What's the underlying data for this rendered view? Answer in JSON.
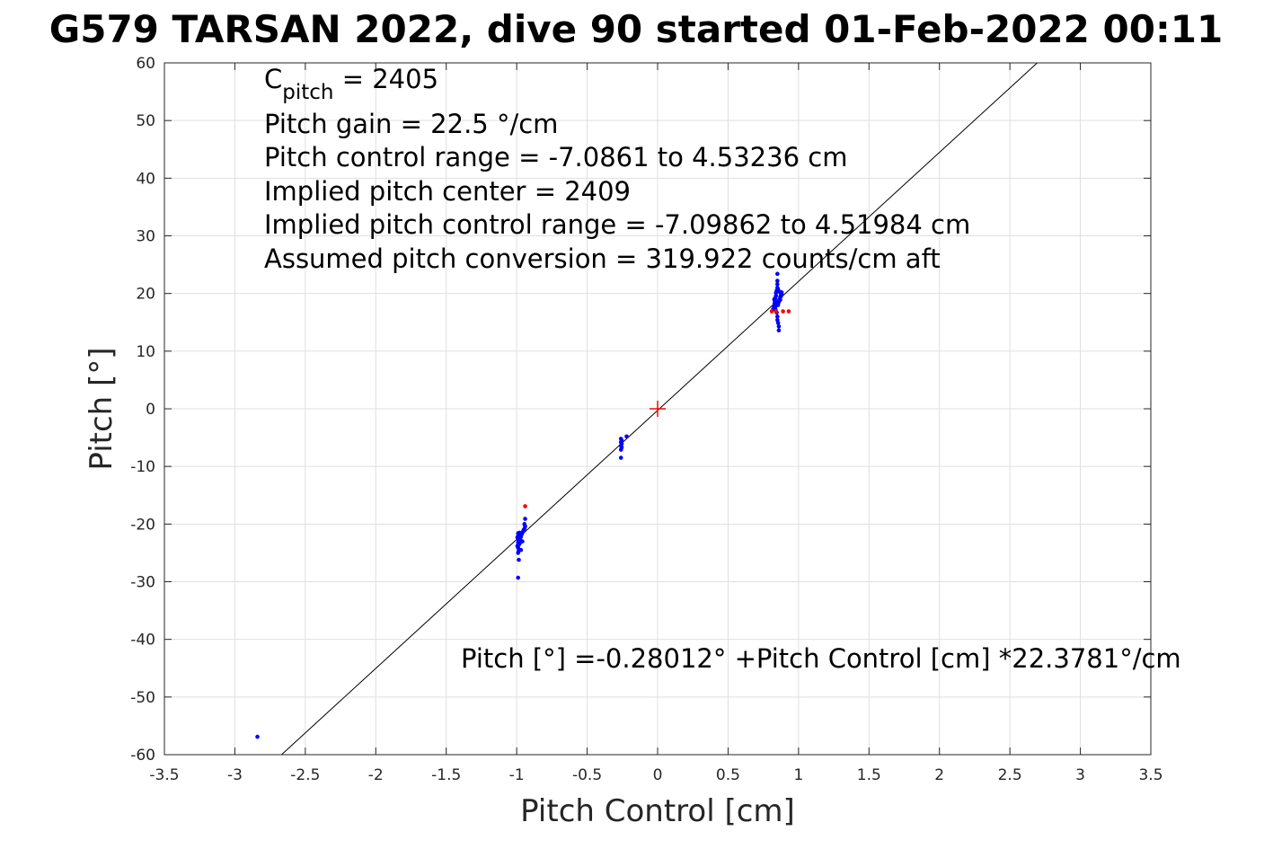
{
  "chart_data": {
    "type": "scatter",
    "title": "G579 TARSAN 2022, dive 90 started 01-Feb-2022 00:11",
    "xlabel": "Pitch Control [cm]",
    "ylabel": "Pitch [°]",
    "xlim": [
      -3.5,
      3.5
    ],
    "ylim": [
      -60,
      60
    ],
    "xticks": [
      -3.5,
      -3,
      -2.5,
      -2,
      -1.5,
      -1,
      -0.5,
      0,
      0.5,
      1,
      1.5,
      2,
      2.5,
      3,
      3.5
    ],
    "xtick_labels": [
      "-3.5",
      "-3",
      "-2.5",
      "-2",
      "-1.5",
      "-1",
      "-0.5",
      "0",
      "0.5",
      "1",
      "1.5",
      "2",
      "2.5",
      "3",
      "3.5"
    ],
    "yticks": [
      -60,
      -50,
      -40,
      -30,
      -20,
      -10,
      0,
      10,
      20,
      30,
      40,
      50,
      60
    ],
    "ytick_labels": [
      "-60",
      "-50",
      "-40",
      "-30",
      "-20",
      "-10",
      "0",
      "10",
      "20",
      "30",
      "40",
      "50",
      "60"
    ],
    "grid": true,
    "colors": {
      "blue": "#0000ff",
      "red": "#ff0000",
      "fit_line": "#000000",
      "grid": "#dfdfdf"
    },
    "annotations": {
      "cpitch_base": "C",
      "cpitch_sub": "pitch",
      "cpitch_value": " = 2405",
      "line2": "Pitch gain = 22.5 °/cm",
      "line3": "Pitch control range = -7.0861 to 4.53236 cm",
      "line4": "Implied pitch center = 2409",
      "line5": "Implied pitch control range = -7.09862 to 4.51984 cm",
      "line6": "Assumed pitch conversion = 319.922 counts/cm aft",
      "fit_equation": "Pitch [°] =-0.28012° +Pitch Control [cm] *22.3781°/cm"
    },
    "fit_line": {
      "intercept": -0.28012,
      "slope": 22.3781
    },
    "center_marker": {
      "x": 0,
      "y": 0,
      "color": "#ff0000"
    },
    "series": [
      {
        "color": "#0000ff",
        "points": [
          [
            -2.84,
            -56.9
          ],
          [
            -0.99,
            -29.3
          ],
          [
            -0.985,
            -26.2
          ],
          [
            -0.99,
            -25.0
          ],
          [
            -0.985,
            -24.6
          ],
          [
            -0.99,
            -24.1
          ],
          [
            -0.985,
            -23.6
          ],
          [
            -0.99,
            -23.2
          ],
          [
            -0.985,
            -22.9
          ],
          [
            -0.99,
            -22.6
          ],
          [
            -0.985,
            -22.4
          ],
          [
            -0.99,
            -22.1
          ],
          [
            -0.985,
            -21.9
          ],
          [
            -0.99,
            -21.6
          ],
          [
            -0.98,
            -21.5
          ],
          [
            -0.98,
            -23.4
          ],
          [
            -0.975,
            -22.8
          ],
          [
            -0.97,
            -22.2
          ],
          [
            -0.965,
            -21.8
          ],
          [
            -0.96,
            -21.5
          ],
          [
            -0.955,
            -21.3
          ],
          [
            -0.95,
            -21.0
          ],
          [
            -0.945,
            -20.8
          ],
          [
            -0.94,
            -20.4
          ],
          [
            -0.945,
            -20.0
          ],
          [
            -0.94,
            -19.1
          ],
          [
            -0.995,
            -22.3
          ],
          [
            -0.995,
            -23.8
          ],
          [
            -0.97,
            -24.5
          ],
          [
            -0.96,
            -23.0
          ],
          [
            -0.26,
            -8.5
          ],
          [
            -0.26,
            -7.1
          ],
          [
            -0.255,
            -6.7
          ],
          [
            -0.26,
            -6.4
          ],
          [
            -0.255,
            -6.1
          ],
          [
            -0.26,
            -5.8
          ],
          [
            -0.255,
            -5.5
          ],
          [
            -0.26,
            -5.2
          ],
          [
            -0.22,
            -4.8
          ],
          [
            0.82,
            17.3
          ],
          [
            0.825,
            17.8
          ],
          [
            0.83,
            18.3
          ],
          [
            0.83,
            18.8
          ],
          [
            0.835,
            19.2
          ],
          [
            0.84,
            19.6
          ],
          [
            0.84,
            20.1
          ],
          [
            0.845,
            20.5
          ],
          [
            0.85,
            21.0
          ],
          [
            0.85,
            21.6
          ],
          [
            0.85,
            22.2
          ],
          [
            0.85,
            23.4
          ],
          [
            0.855,
            18.0
          ],
          [
            0.86,
            18.5
          ],
          [
            0.865,
            19.0
          ],
          [
            0.87,
            19.4
          ],
          [
            0.875,
            19.8
          ],
          [
            0.88,
            20.2
          ],
          [
            0.845,
            16.7
          ],
          [
            0.85,
            16.0
          ],
          [
            0.85,
            15.4
          ],
          [
            0.855,
            14.9
          ],
          [
            0.86,
            14.3
          ],
          [
            0.86,
            13.6
          ],
          [
            0.835,
            17.6
          ],
          [
            0.84,
            18.1
          ],
          [
            0.87,
            18.9
          ],
          [
            0.875,
            19.5
          ],
          [
            0.88,
            19.9
          ],
          [
            0.865,
            20.3
          ],
          [
            0.855,
            20.7
          ],
          [
            0.845,
            18.6
          ],
          [
            0.828,
            19.0
          ],
          [
            0.838,
            17.1
          ]
        ]
      },
      {
        "color": "#ff0000",
        "points": [
          [
            -0.94,
            -16.9
          ],
          [
            0.81,
            16.9
          ],
          [
            0.84,
            16.9
          ],
          [
            0.89,
            16.9
          ],
          [
            0.93,
            16.9
          ]
        ]
      }
    ]
  }
}
